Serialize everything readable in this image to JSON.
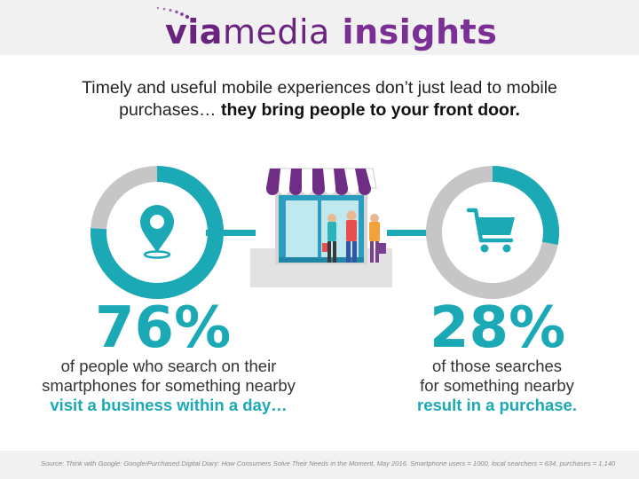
{
  "brand": {
    "prefix": "via",
    "middle": "media",
    "suffix": " insights",
    "accent_color": "#6b2380"
  },
  "headline": {
    "line1": "Timely and useful mobile experiences don’t just lead to mobile",
    "line2_plain": "purchases… ",
    "line2_bold": "they bring people to your front door."
  },
  "left_stat": {
    "percent_label": "76%",
    "percent_value": 76,
    "icon": "map-pin-icon",
    "desc_line1": "of people who search on their",
    "desc_line2": "smartphones for something nearby",
    "emphasis": "visit a business within a day…"
  },
  "right_stat": {
    "percent_label": "28%",
    "percent_value": 28,
    "icon": "shopping-cart-icon",
    "desc_line1": "of those searches",
    "desc_line2": "for something nearby",
    "emphasis": "result in a purchase."
  },
  "center_icon": "storefront-icon",
  "colors": {
    "teal": "#1aa9b5",
    "gray": "#c6c6c6",
    "purple": "#6b2380"
  },
  "footer": {
    "source": "Source: Think with Google: Google/Purchased Digital Diary: How Consumers Solve Their Needs in the Moment, May 2016. Smartphone users = 1000, local searchers = 634, purchases = 1,140"
  }
}
